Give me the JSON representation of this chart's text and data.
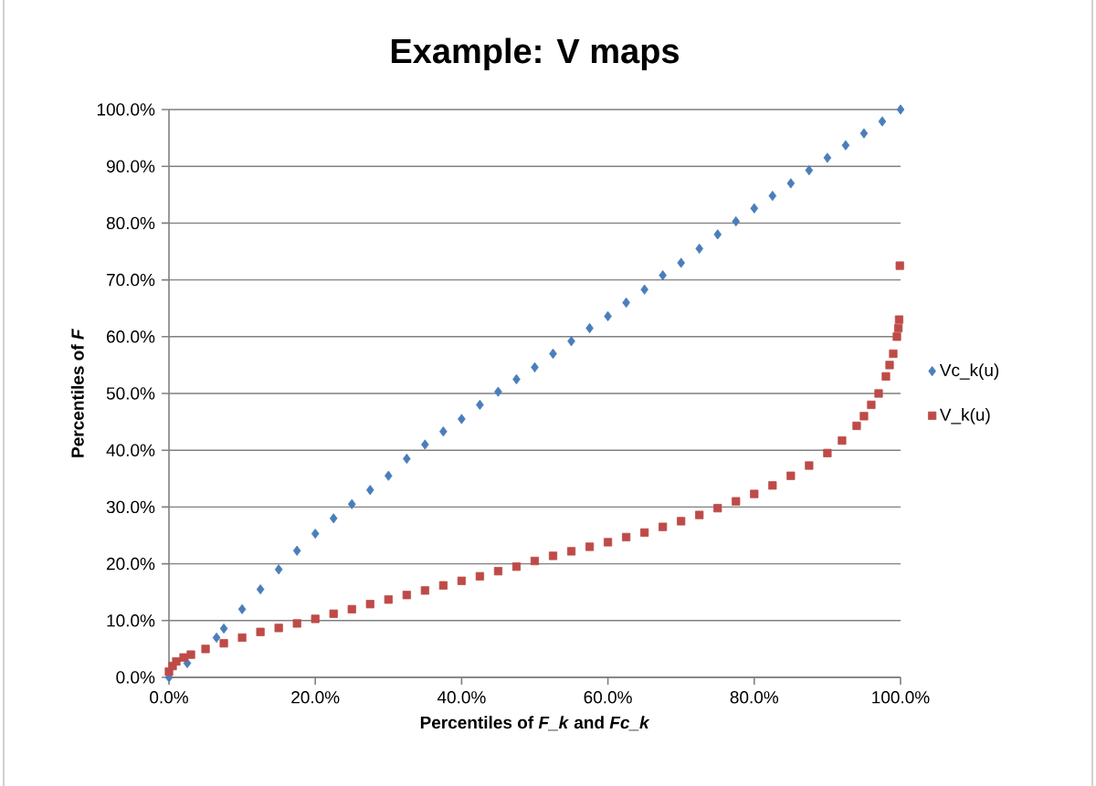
{
  "chart_data": {
    "type": "scatter",
    "title": "Example:  V maps",
    "xlabel": "Percentiles of *F_k* and *Fc_k*",
    "ylabel": "Percentiles of *F*",
    "xlim": [
      0,
      100
    ],
    "ylim": [
      0,
      100
    ],
    "xticks": [
      {
        "value": 0,
        "label": "0.0%"
      },
      {
        "value": 20,
        "label": "20.0%"
      },
      {
        "value": 40,
        "label": "40.0%"
      },
      {
        "value": 60,
        "label": "60.0%"
      },
      {
        "value": 80,
        "label": "80.0%"
      },
      {
        "value": 100,
        "label": "100.0%"
      }
    ],
    "yticks": [
      {
        "value": 0,
        "label": "0.0%"
      },
      {
        "value": 10,
        "label": "10.0%"
      },
      {
        "value": 20,
        "label": "20.0%"
      },
      {
        "value": 30,
        "label": "30.0%"
      },
      {
        "value": 40,
        "label": "40.0%"
      },
      {
        "value": 50,
        "label": "50.0%"
      },
      {
        "value": 60,
        "label": "60.0%"
      },
      {
        "value": 70,
        "label": "70.0%"
      },
      {
        "value": 80,
        "label": "80.0%"
      },
      {
        "value": 90,
        "label": "90.0%"
      },
      {
        "value": 100,
        "label": "100.0%"
      }
    ],
    "grid": "y",
    "legend": "right",
    "series": [
      {
        "name": "Vc_k(u)",
        "color": "#4a7ebb",
        "marker": "diamond",
        "x": [
          0,
          2.5,
          6.5,
          7.5,
          10,
          12.5,
          15,
          17.5,
          20,
          22.5,
          25,
          27.5,
          30,
          32.5,
          35,
          37.5,
          40,
          42.5,
          45,
          47.5,
          50,
          52.5,
          55,
          57.5,
          60,
          62.5,
          65,
          67.5,
          70,
          72.5,
          75,
          77.5,
          80,
          82.5,
          85,
          87.5,
          90,
          92.5,
          95,
          97.5,
          100
        ],
        "values": [
          0,
          2.5,
          7,
          8.6,
          12,
          15.5,
          19,
          22.3,
          25.3,
          28,
          30.5,
          33,
          35.5,
          38.5,
          41,
          43.3,
          45.5,
          48,
          50.3,
          52.5,
          54.6,
          57,
          59.2,
          61.5,
          63.6,
          66,
          68.3,
          70.8,
          73,
          75.5,
          78,
          80.3,
          82.6,
          84.8,
          87,
          89.3,
          91.5,
          93.7,
          95.8,
          97.9,
          100
        ]
      },
      {
        "name": "V_k(u)",
        "color": "#be4b48",
        "marker": "square",
        "x": [
          0,
          0.5,
          1,
          2,
          3,
          5,
          7.5,
          10,
          12.5,
          15,
          17.5,
          20,
          22.5,
          25,
          27.5,
          30,
          32.5,
          35,
          37.5,
          40,
          42.5,
          45,
          47.5,
          50,
          52.5,
          55,
          57.5,
          60,
          62.5,
          65,
          67.5,
          70,
          72.5,
          75,
          77.5,
          80,
          82.5,
          85,
          87.5,
          90,
          92,
          94,
          95,
          96,
          97,
          98,
          98.5,
          99,
          99.5,
          99.7,
          99.8,
          99.9
        ],
        "values": [
          1,
          2,
          2.8,
          3.5,
          4,
          5,
          6,
          7,
          8,
          8.7,
          9.5,
          10.3,
          11.2,
          12,
          12.9,
          13.7,
          14.5,
          15.3,
          16.2,
          17,
          17.8,
          18.7,
          19.5,
          20.5,
          21.4,
          22.2,
          23,
          23.8,
          24.7,
          25.5,
          26.5,
          27.5,
          28.6,
          29.8,
          31,
          32.3,
          33.8,
          35.5,
          37.3,
          39.5,
          41.7,
          44.3,
          46,
          48,
          50,
          53,
          55,
          57,
          60,
          61.5,
          63,
          72.5
        ]
      }
    ]
  }
}
